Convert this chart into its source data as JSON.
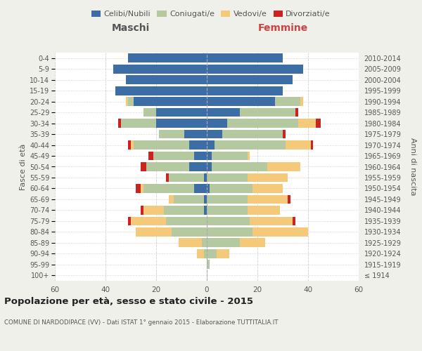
{
  "age_groups": [
    "100+",
    "95-99",
    "90-94",
    "85-89",
    "80-84",
    "75-79",
    "70-74",
    "65-69",
    "60-64",
    "55-59",
    "50-54",
    "45-49",
    "40-44",
    "35-39",
    "30-34",
    "25-29",
    "20-24",
    "15-19",
    "10-14",
    "5-9",
    "0-4"
  ],
  "birth_years": [
    "≤ 1914",
    "1915-1919",
    "1920-1924",
    "1925-1929",
    "1930-1934",
    "1935-1939",
    "1940-1944",
    "1945-1949",
    "1950-1954",
    "1955-1959",
    "1960-1964",
    "1965-1969",
    "1970-1974",
    "1975-1979",
    "1980-1984",
    "1985-1989",
    "1990-1994",
    "1995-1999",
    "2000-2004",
    "2005-2009",
    "2010-2014"
  ],
  "colors": {
    "celibi": "#3c6ea5",
    "coniugati": "#b5c9a0",
    "vedovi": "#f5c97a",
    "divorziati": "#cc2222"
  },
  "maschi": {
    "celibi": [
      0,
      0,
      0,
      0,
      0,
      0,
      1,
      1,
      5,
      1,
      7,
      5,
      7,
      9,
      20,
      20,
      29,
      36,
      32,
      37,
      31
    ],
    "coniugati": [
      0,
      0,
      1,
      2,
      14,
      16,
      16,
      12,
      20,
      14,
      17,
      16,
      22,
      10,
      14,
      5,
      2,
      0,
      0,
      0,
      0
    ],
    "vedovi": [
      0,
      0,
      3,
      9,
      14,
      14,
      8,
      2,
      1,
      0,
      0,
      0,
      1,
      0,
      0,
      0,
      1,
      0,
      0,
      0,
      0
    ],
    "divorziati": [
      0,
      0,
      0,
      0,
      0,
      1,
      1,
      0,
      2,
      1,
      2,
      2,
      1,
      0,
      1,
      0,
      0,
      0,
      0,
      0,
      0
    ]
  },
  "femmine": {
    "celibi": [
      0,
      0,
      0,
      0,
      0,
      0,
      0,
      0,
      1,
      0,
      2,
      2,
      3,
      6,
      8,
      13,
      27,
      30,
      34,
      38,
      30
    ],
    "coniugati": [
      0,
      1,
      4,
      13,
      18,
      17,
      16,
      16,
      17,
      16,
      22,
      14,
      28,
      24,
      28,
      22,
      10,
      0,
      0,
      0,
      0
    ],
    "vedovi": [
      0,
      0,
      5,
      10,
      22,
      17,
      13,
      16,
      12,
      16,
      13,
      1,
      10,
      0,
      7,
      0,
      1,
      0,
      0,
      0,
      0
    ],
    "divorziati": [
      0,
      0,
      0,
      0,
      0,
      1,
      0,
      1,
      0,
      0,
      0,
      0,
      1,
      1,
      2,
      1,
      0,
      0,
      0,
      0,
      0
    ]
  },
  "title": "Popolazione per età, sesso e stato civile - 2015",
  "subtitle": "COMUNE DI NARDODIPACE (VV) - Dati ISTAT 1° gennaio 2015 - Elaborazione TUTTITALIA.IT",
  "xlabel_left": "Maschi",
  "xlabel_right": "Femmine",
  "ylabel_left": "Fasce di età",
  "ylabel_right": "Anni di nascita",
  "xlim": 60,
  "legend_labels": [
    "Celibi/Nubili",
    "Coniugati/e",
    "Vedovi/e",
    "Divorziati/e"
  ],
  "bg_color": "#f0f0eb",
  "plot_bg_color": "#ffffff",
  "grid_color": "#cccccc",
  "text_color": "#555555",
  "title_color": "#222222"
}
